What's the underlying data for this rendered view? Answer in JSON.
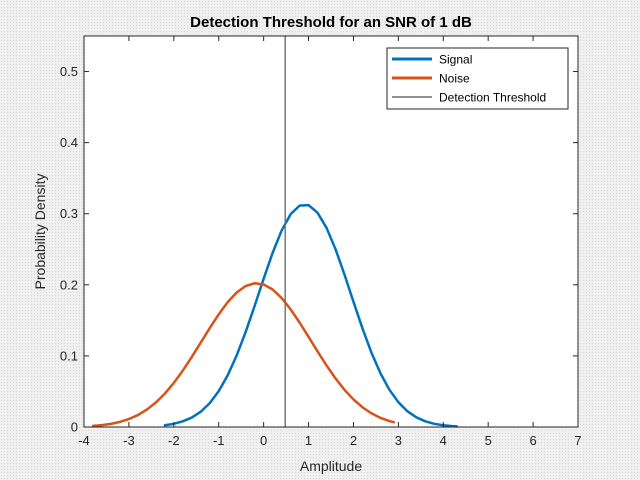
{
  "chart_data": {
    "type": "line",
    "title": "Detection Threshold for an SNR of 1 dB",
    "xlabel": "Amplitude",
    "ylabel": "Probability Density",
    "xlim": [
      -4,
      7
    ],
    "ylim": [
      0,
      0.55
    ],
    "x_ticks": [
      -4,
      -3,
      -2,
      -1,
      0,
      1,
      2,
      3,
      4,
      5,
      6,
      7
    ],
    "y_ticks": [
      0,
      0.1,
      0.2,
      0.3,
      0.4,
      0.5
    ],
    "x_tick_labels": [
      "-4",
      "-3",
      "-2",
      "-1",
      "0",
      "1",
      "2",
      "3",
      "4",
      "5",
      "6",
      "7"
    ],
    "y_tick_labels": [
      "0",
      "0.1",
      "0.2",
      "0.3",
      "0.4",
      "0.5"
    ],
    "grid": false,
    "legend_position": "top-right",
    "series": [
      {
        "name": "Signal",
        "color": "#0072bd",
        "x": [
          -2.2,
          -2.0,
          -1.8,
          -1.6,
          -1.4,
          -1.2,
          -1.0,
          -0.8,
          -0.6,
          -0.4,
          -0.2,
          0.0,
          0.2,
          0.4,
          0.6,
          0.8,
          1.0,
          1.2,
          1.4,
          1.6,
          1.8,
          2.0,
          2.2,
          2.4,
          2.6,
          2.8,
          3.0,
          3.2,
          3.4,
          3.6,
          3.8,
          4.0,
          4.2,
          4.3
        ],
        "y": [
          0.0025,
          0.0045,
          0.008,
          0.0133,
          0.0215,
          0.0336,
          0.0505,
          0.0728,
          0.1007,
          0.1337,
          0.1704,
          0.2085,
          0.2449,
          0.2763,
          0.2993,
          0.3114,
          0.3121,
          0.3014,
          0.2802,
          0.2503,
          0.2145,
          0.1762,
          0.1388,
          0.1047,
          0.0757,
          0.0525,
          0.0349,
          0.0222,
          0.0136,
          0.008,
          0.0045,
          0.0024,
          0.0013,
          0.0009
        ],
        "peak_label_note": ""
      },
      {
        "name": "Noise",
        "color": "#d95319",
        "x": [
          -3.8,
          -3.6,
          -3.4,
          -3.2,
          -3.0,
          -2.8,
          -2.6,
          -2.4,
          -2.2,
          -2.0,
          -1.8,
          -1.6,
          -1.4,
          -1.2,
          -1.0,
          -0.8,
          -0.6,
          -0.4,
          -0.2,
          0.0,
          0.2,
          0.4,
          0.6,
          0.8,
          1.0,
          1.2,
          1.4,
          1.6,
          1.8,
          2.0,
          2.2,
          2.4,
          2.6,
          2.8,
          2.9
        ],
        "y": [
          0.0015,
          0.0026,
          0.0044,
          0.0072,
          0.0112,
          0.0168,
          0.0245,
          0.0345,
          0.047,
          0.062,
          0.0794,
          0.0986,
          0.1188,
          0.1392,
          0.1585,
          0.1756,
          0.1892,
          0.1983,
          0.2022,
          0.2005,
          0.1934,
          0.1815,
          0.1656,
          0.147,
          0.1269,
          0.1064,
          0.0866,
          0.0684,
          0.0523,
          0.0388,
          0.0278,
          0.0193,
          0.0129,
          0.0084,
          0.0068
        ]
      },
      {
        "name": "Detection Threshold",
        "color": "#6e6e6e",
        "x": [
          0.48,
          0.48
        ],
        "y": [
          0,
          0.55
        ]
      }
    ]
  }
}
